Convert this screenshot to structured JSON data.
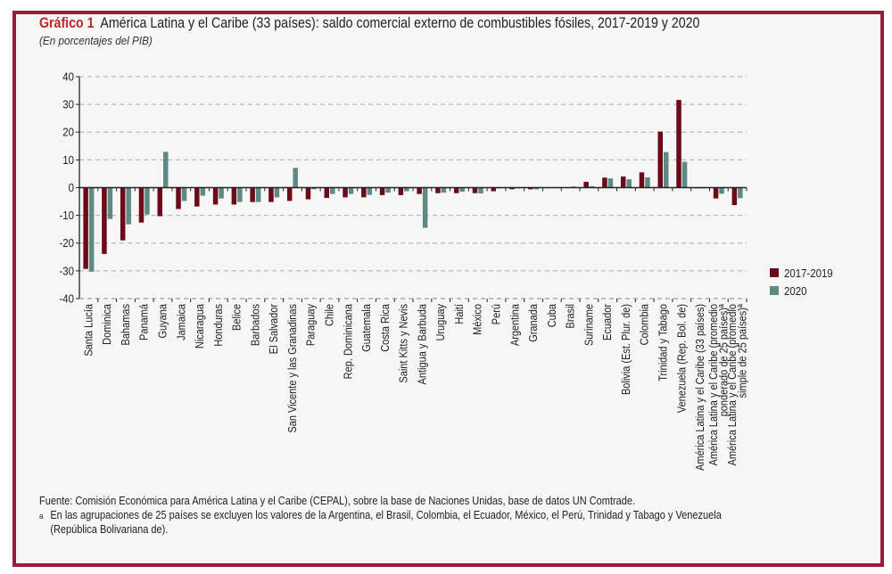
{
  "header": {
    "figure_number": "Gráfico 1",
    "title": "América Latina y el Caribe (33 países): saldo comercial externo de combustibles fósiles, 2017-2019 y 2020",
    "subtitle": "(En porcentajes del PIB)"
  },
  "notes": {
    "source": "Fuente: Comisión Económica para América Latina y el Caribe (CEPAL), sobre la base de Naciones Unidas, base de datos UN Comtrade.",
    "footnote_mark": "a",
    "footnote_line1": "En las agrupaciones de 25 países se excluyen los valores de la Argentina, el Brasil, Colombia, el Ecuador, México, el Perú, Trinidad y Tabago y Venezuela",
    "footnote_line2": "(República Bolivariana de)."
  },
  "colors": {
    "frame": "#9b1b3a",
    "series_2017_2019": "#6d0a18",
    "series_2020": "#5d8a85",
    "figure_number": "#c0272d"
  },
  "chart_data": {
    "type": "bar",
    "title": "América Latina y el Caribe (33 países): saldo comercial externo de combustibles fósiles, 2017-2019 y 2020",
    "subtitle": "(En porcentajes del PIB)",
    "xlabel": "",
    "ylabel": "",
    "ylim": [
      -40,
      40
    ],
    "yticks": [
      -40,
      -30,
      -20,
      -10,
      0,
      10,
      20,
      30,
      40
    ],
    "grid": true,
    "legend_position": "right",
    "categories": [
      "Santa Lucía",
      "Dominica",
      "Bahamas",
      "Panamá",
      "Guyana",
      "Jamaica",
      "Nicaragua",
      "Honduras",
      "Belice",
      "Barbados",
      "El Salvador",
      "San Vicente y las Granadinas",
      "Paraguay",
      "Chile",
      "Rep. Dominicana",
      "Guatemala",
      "Costa Rica",
      "Saint Kitts y Nevis",
      "Antigua y Barbuda",
      "Uruguay",
      "Haití",
      "México",
      "Perú",
      "Argentina",
      "Granada",
      "Cuba",
      "Brasil",
      "Suriname",
      "Ecuador",
      "Bolivia (Est. Plur. de)",
      "Colombia",
      "Trinidad y Tabago",
      "Venezuela (Rep. Bol. de)",
      "América Latina y el Caribe (33 países)",
      "América Latina y el Caribe (promedio ponderado de 25 países)ª",
      "América Latina y el Caribe (promedio simple de 25 países)ª"
    ],
    "category_lines": [
      [
        "Santa Lucía"
      ],
      [
        "Dominica"
      ],
      [
        "Bahamas"
      ],
      [
        "Panamá"
      ],
      [
        "Guyana"
      ],
      [
        "Jamaica"
      ],
      [
        "Nicaragua"
      ],
      [
        "Honduras"
      ],
      [
        "Belice"
      ],
      [
        "Barbados"
      ],
      [
        "El Salvador"
      ],
      [
        "San Vicente y las Granadinas"
      ],
      [
        "Paraguay"
      ],
      [
        "Chile"
      ],
      [
        "Rep. Dominicana"
      ],
      [
        "Guatemala"
      ],
      [
        "Costa Rica"
      ],
      [
        "Saint Kitts y Nevis"
      ],
      [
        "Antigua y Barbuda"
      ],
      [
        "Uruguay"
      ],
      [
        "Haití"
      ],
      [
        "México"
      ],
      [
        "Perú"
      ],
      [
        "Argentina"
      ],
      [
        "Granada"
      ],
      [
        "Cuba"
      ],
      [
        "Brasil"
      ],
      [
        "Suriname"
      ],
      [
        "Ecuador"
      ],
      [
        "Bolivia (Est. Plur. de)"
      ],
      [
        "Colombia"
      ],
      [
        "Trinidad y Tabago"
      ],
      [
        "Venezuela (Rep. Bol. de)"
      ],
      [
        "América Latina y el Caribe (33 países)"
      ],
      [
        "América Latina y el Caribe (promedio",
        "ponderado de 25 países)ª"
      ],
      [
        "América Latina y el Caribe (promedio",
        "simple de 25 países)ª"
      ]
    ],
    "series": [
      {
        "name": "2017-2019",
        "values": [
          -29.3,
          -23.9,
          -19.0,
          -12.6,
          -10.3,
          -7.7,
          -6.8,
          -6.1,
          -6.1,
          -5.2,
          -5.2,
          -4.8,
          -4.2,
          -3.7,
          -3.5,
          -3.5,
          -2.7,
          -2.7,
          -2.3,
          -2.0,
          -2.0,
          -2.0,
          -1.3,
          -0.6,
          -0.6,
          -0.2,
          0.0,
          2.1,
          3.6,
          4.0,
          5.5,
          20.2,
          31.6,
          -0.3,
          -3.9,
          -6.3
        ]
      },
      {
        "name": "2020",
        "values": [
          -30.3,
          -11.3,
          -13.2,
          -9.7,
          12.9,
          -4.8,
          -2.9,
          -3.9,
          -5.2,
          -5.2,
          -3.5,
          7.1,
          -0.6,
          -2.3,
          -2.3,
          -2.6,
          -1.8,
          -1.3,
          -14.5,
          -1.8,
          -1.5,
          -2.1,
          -0.3,
          -0.3,
          -0.6,
          0.0,
          0.4,
          0.5,
          3.3,
          3.0,
          3.7,
          12.8,
          9.3,
          -0.3,
          -2.2,
          -3.8
        ]
      }
    ]
  }
}
